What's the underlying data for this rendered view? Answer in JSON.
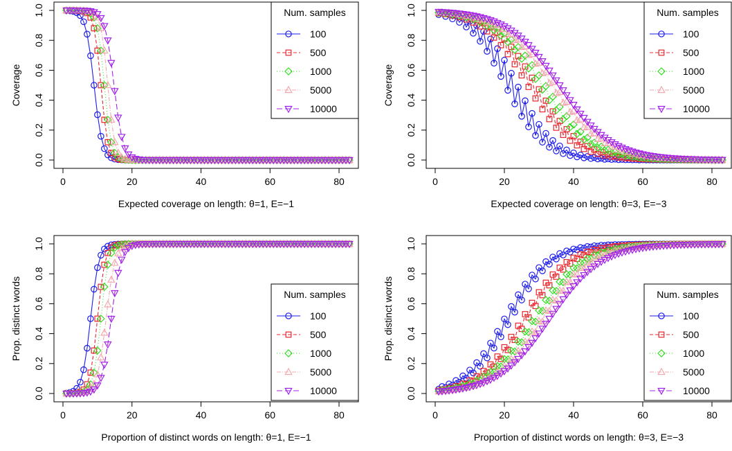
{
  "figure": {
    "background": "#ffffff"
  },
  "series_styles": [
    {
      "name": "100",
      "color": "#1a1aee",
      "marker": "circle",
      "dash": ""
    },
    {
      "name": "500",
      "color": "#e8242b",
      "marker": "square",
      "dash": "5,3"
    },
    {
      "name": "1000",
      "color": "#33dd22",
      "marker": "diamond",
      "dash": "1,3"
    },
    {
      "name": "5000",
      "color": "#f2a8ae",
      "marker": "triangle-up",
      "dash": "6,2,1,2"
    },
    {
      "name": "10000",
      "color": "#a020e8",
      "marker": "triangle-down",
      "dash": "8,4"
    }
  ],
  "chart_data": [
    {
      "type": "line",
      "xlabel": "Expected coverage on length: θ=1, E=−1",
      "ylabel": "Coverage",
      "xlim": [
        0,
        83
      ],
      "ylim": [
        0,
        1
      ],
      "xticks": [
        "0",
        "20",
        "40",
        "60",
        "80"
      ],
      "yticks": [
        "0.0",
        "0.2",
        "0.4",
        "0.6",
        "0.8",
        "1.0"
      ],
      "legend": {
        "title": "Num. samples",
        "position": "top-right"
      },
      "curve": "decreasing",
      "series": [
        {
          "name": "100",
          "midpoint": 9.0,
          "width": 1.2
        },
        {
          "name": "500",
          "midpoint": 11.0,
          "width": 1.0
        },
        {
          "name": "1000",
          "midpoint": 12.0,
          "width": 1.0
        },
        {
          "name": "5000",
          "midpoint": 13.0,
          "width": 1.0
        },
        {
          "name": "10000",
          "midpoint": 14.8,
          "width": 1.3
        }
      ]
    },
    {
      "type": "line",
      "xlabel": "Expected coverage on length: θ=3, E=−3",
      "ylabel": "Coverage",
      "xlim": [
        0,
        83
      ],
      "ylim": [
        0,
        1
      ],
      "xticks": [
        "0",
        "20",
        "40",
        "60",
        "80"
      ],
      "yticks": [
        "0.0",
        "0.2",
        "0.4",
        "0.6",
        "0.8",
        "1.0"
      ],
      "legend": {
        "title": "Num. samples",
        "position": "top-right"
      },
      "curve": "decreasing",
      "series": [
        {
          "name": "100",
          "midpoint": 22.0,
          "width": 5.5,
          "zigzag": 0.08
        },
        {
          "name": "500",
          "midpoint": 28.0,
          "width": 6.5,
          "zigzag": 0.05
        },
        {
          "name": "1000",
          "midpoint": 31.0,
          "width": 7.0,
          "zigzag": 0.03
        },
        {
          "name": "5000",
          "midpoint": 34.0,
          "width": 7.5,
          "zigzag": 0.02
        },
        {
          "name": "10000",
          "midpoint": 36.0,
          "width": 7.5,
          "zigzag": 0.0
        }
      ]
    },
    {
      "type": "line",
      "xlabel": "Proportion of distinct words on length: θ=1, E=−1",
      "ylabel": "Prop. distinct words",
      "xlim": [
        0,
        83
      ],
      "ylim": [
        0,
        1
      ],
      "xticks": [
        "0",
        "20",
        "40",
        "60",
        "80"
      ],
      "yticks": [
        "0.0",
        "0.2",
        "0.4",
        "0.6",
        "0.8",
        "1.0"
      ],
      "legend": {
        "title": "Num. samples",
        "position": "right"
      },
      "curve": "increasing",
      "series": [
        {
          "name": "100",
          "midpoint": 8.0,
          "width": 1.2
        },
        {
          "name": "500",
          "midpoint": 10.0,
          "width": 1.1
        },
        {
          "name": "1000",
          "midpoint": 11.0,
          "width": 1.1
        },
        {
          "name": "5000",
          "midpoint": 12.5,
          "width": 1.3
        },
        {
          "name": "10000",
          "midpoint": 14.0,
          "width": 1.4
        }
      ]
    },
    {
      "type": "line",
      "xlabel": "Proportion of distinct words on length: θ=3, E=−3",
      "ylabel": "Prop. distinct words",
      "xlim": [
        0,
        83
      ],
      "ylim": [
        0,
        1
      ],
      "xticks": [
        "0",
        "20",
        "40",
        "60",
        "80"
      ],
      "yticks": [
        "0.0",
        "0.2",
        "0.4",
        "0.6",
        "0.8",
        "1.0"
      ],
      "legend": {
        "title": "Num. samples",
        "position": "right"
      },
      "curve": "increasing",
      "series": [
        {
          "name": "100",
          "midpoint": 21.0,
          "width": 6.0,
          "zigzag": 0.04
        },
        {
          "name": "500",
          "midpoint": 26.0,
          "width": 6.5,
          "zigzag": 0.03
        },
        {
          "name": "1000",
          "midpoint": 29.0,
          "width": 7.0,
          "zigzag": 0.02
        },
        {
          "name": "5000",
          "midpoint": 31.0,
          "width": 7.0,
          "zigzag": 0.02
        },
        {
          "name": "10000",
          "midpoint": 33.0,
          "width": 7.5,
          "zigzag": 0.0
        }
      ]
    }
  ]
}
